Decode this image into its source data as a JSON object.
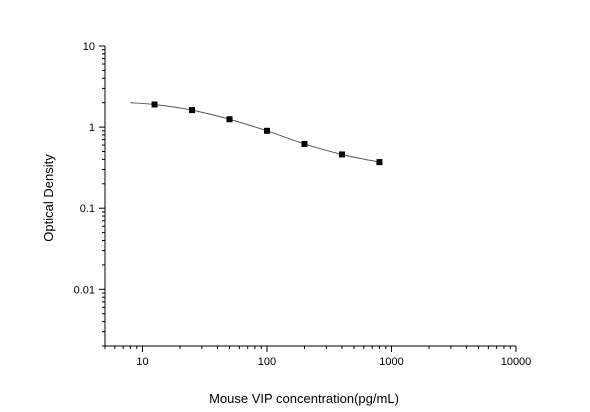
{
  "chart_data": {
    "type": "scatter",
    "title": "",
    "xlabel": "Mouse VIP concentration(pg/mL)",
    "ylabel": "Optical Density",
    "x_scale": "log",
    "y_scale": "log",
    "xlim": [
      5,
      10000
    ],
    "ylim": [
      0.002,
      10
    ],
    "x_ticks": [
      10,
      100,
      1000,
      10000
    ],
    "x_tick_labels": [
      "10",
      "100",
      "1000",
      "10000"
    ],
    "y_ticks": [
      0.01,
      0.1,
      1,
      10
    ],
    "y_tick_labels": [
      "0.01",
      "0.1",
      "1",
      "10"
    ],
    "grid": false,
    "legend": "none",
    "series": [
      {
        "x": [
          12.5,
          25,
          50,
          100,
          200,
          400,
          800
        ],
        "y": [
          1.9,
          1.62,
          1.25,
          0.9,
          0.62,
          0.46,
          0.37
        ],
        "marker": "square",
        "fit_curve": {
          "x": [
            8,
            12.5,
            25,
            50,
            100,
            200,
            400,
            800
          ],
          "y": [
            2.0,
            1.9,
            1.62,
            1.25,
            0.9,
            0.62,
            0.46,
            0.37
          ]
        }
      }
    ],
    "colors": {
      "axis": "#000000",
      "marker": "#000000",
      "curve": "#555555"
    }
  }
}
